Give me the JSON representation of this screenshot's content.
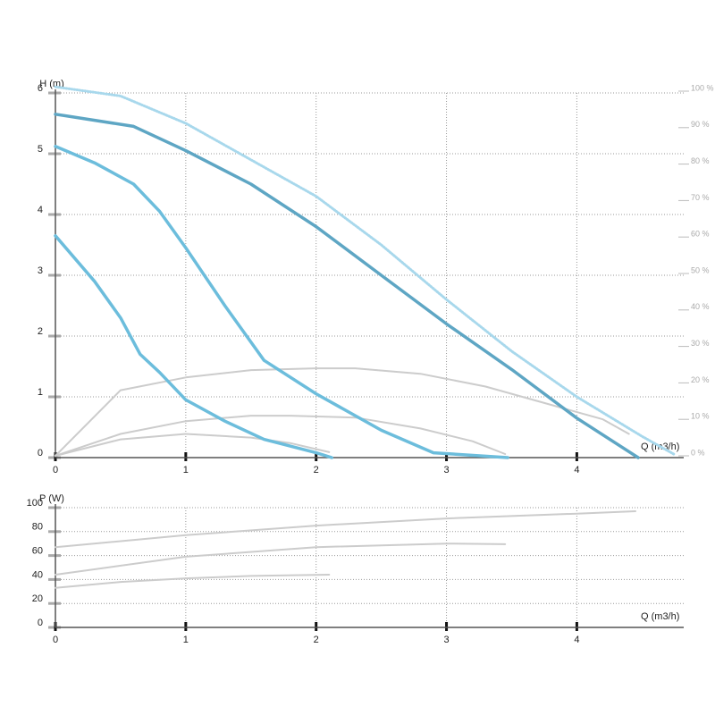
{
  "chart_data": [
    {
      "type": "line",
      "ylabel": "H (m)",
      "xlabel": "Q (m3/h)",
      "xlim": [
        0,
        4.82
      ],
      "ylim": [
        0,
        6
      ],
      "y2lim": [
        0,
        100
      ],
      "xticks": [
        0,
        1,
        2,
        3,
        4
      ],
      "yticks": [
        0,
        1,
        2,
        3,
        4,
        5,
        6
      ],
      "y2ticks": [
        {
          "value": 0,
          "label": "0 %"
        },
        {
          "value": 10,
          "label": "10 %"
        },
        {
          "value": 20,
          "label": "20 %"
        },
        {
          "value": 30,
          "label": "30 %"
        },
        {
          "value": 40,
          "label": "40 %"
        },
        {
          "value": 50,
          "label": "50 %"
        },
        {
          "value": 60,
          "label": "60 %"
        },
        {
          "value": 70,
          "label": "70 %"
        },
        {
          "value": 80,
          "label": "80 %"
        },
        {
          "value": 90,
          "label": "90 %"
        },
        {
          "value": 100,
          "label": "100 %"
        }
      ],
      "grid": true,
      "series": [
        {
          "color": "#cccccc",
          "axis": "y2",
          "x": [
            0,
            0.5,
            1,
            1.5,
            2,
            2.3,
            2.8,
            3.3,
            3.8,
            4.2,
            4.4
          ],
          "values": [
            0,
            18,
            21.5,
            23.5,
            24,
            24,
            22.5,
            19,
            14,
            10,
            6
          ]
        },
        {
          "color": "#cccccc",
          "axis": "y2",
          "x": [
            0,
            0.5,
            1,
            1.5,
            1.8,
            2.3,
            2.8,
            3.2,
            3.45
          ],
          "values": [
            0,
            6,
            9.5,
            11,
            11,
            10.5,
            7.5,
            4,
            0.5
          ]
        },
        {
          "color": "#cccccc",
          "axis": "y2",
          "x": [
            0,
            0.5,
            1,
            1.5,
            1.8,
            2.1
          ],
          "values": [
            0,
            4.5,
            6,
            5,
            3.5,
            1
          ]
        },
        {
          "color": "#a8d8ec",
          "style": "dotted",
          "x": [
            0,
            0.5,
            1,
            1.5,
            2,
            2.5,
            3,
            3.5,
            4,
            4.5,
            4.75
          ],
          "values": [
            6.1,
            5.95,
            5.5,
            4.9,
            4.3,
            3.5,
            2.6,
            1.75,
            1.0,
            0.35,
            0.05
          ]
        },
        {
          "color": "#5ea6c4",
          "x": [
            0,
            0.6,
            1,
            1.5,
            2,
            2.5,
            3,
            3.5,
            4,
            4.47
          ],
          "values": [
            5.65,
            5.45,
            5.05,
            4.5,
            3.8,
            3.0,
            2.2,
            1.45,
            0.65,
            0
          ]
        },
        {
          "color": "#6cbddc",
          "x": [
            0,
            0.3,
            0.6,
            0.8,
            1,
            1.3,
            1.6,
            2,
            2.5,
            2.9,
            3.47
          ],
          "values": [
            5.12,
            4.85,
            4.5,
            4.05,
            3.45,
            2.5,
            1.6,
            1.05,
            0.45,
            0.08,
            0
          ]
        },
        {
          "color": "#6cbddc",
          "x": [
            0,
            0.3,
            0.5,
            0.65,
            0.8,
            1,
            1.3,
            1.6,
            2,
            2.12
          ],
          "values": [
            3.65,
            2.9,
            2.3,
            1.7,
            1.4,
            0.95,
            0.6,
            0.3,
            0.08,
            0
          ]
        }
      ]
    },
    {
      "type": "line",
      "ylabel": "P (W)",
      "xlabel": "Q (m3/h)",
      "xlim": [
        0,
        4.82
      ],
      "ylim": [
        0,
        100
      ],
      "xticks": [
        0,
        1,
        2,
        3,
        4
      ],
      "yticks": [
        0,
        20,
        40,
        60,
        80,
        100
      ],
      "grid": true,
      "series": [
        {
          "color": "#cccccc",
          "x": [
            0,
            1,
            2,
            3,
            4,
            4.45
          ],
          "values": [
            67,
            77,
            85,
            91,
            95,
            97
          ]
        },
        {
          "color": "#cccccc",
          "x": [
            0,
            1,
            2,
            3,
            3.45
          ],
          "values": [
            44,
            59,
            67,
            70,
            69.5
          ]
        },
        {
          "color": "#cccccc",
          "x": [
            0,
            0.5,
            1,
            1.5,
            2.1
          ],
          "values": [
            33,
            38,
            41,
            43,
            44
          ]
        }
      ]
    }
  ]
}
